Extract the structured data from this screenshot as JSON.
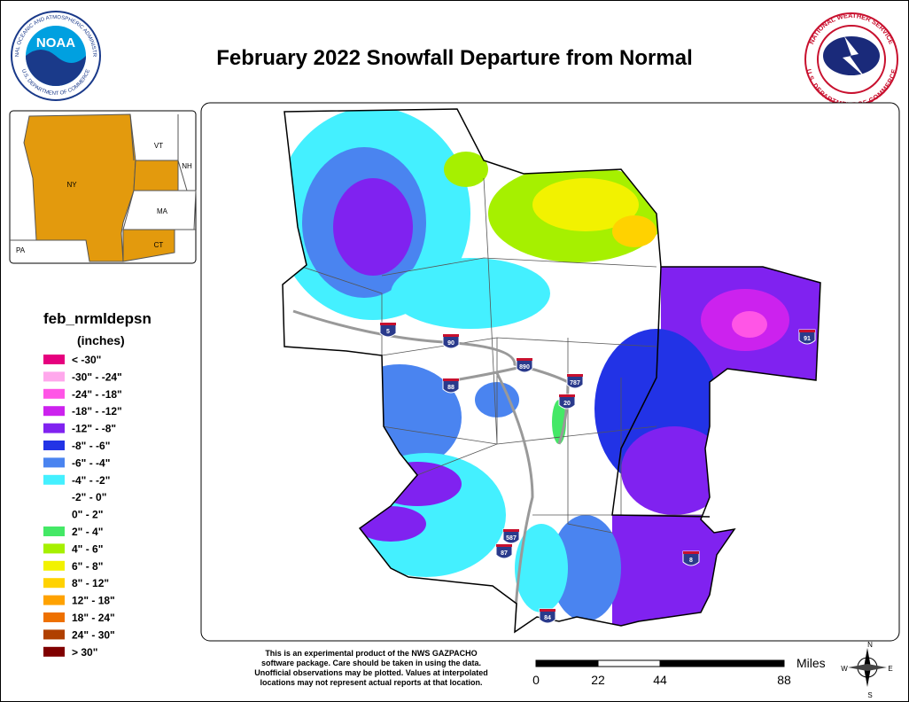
{
  "header": {
    "title": "February 2022 Snowfall Departure from Normal"
  },
  "logos": {
    "noaa": {
      "name": "NOAA",
      "ring_top": "NATIONAL OCEANIC AND ATMOSPHERIC ADMINISTRATION",
      "ring_bottom": "U.S. DEPARTMENT OF COMMERCE"
    },
    "nws": {
      "ring_top": "NATIONAL WEATHER SERVICE",
      "ring_bottom": "U.S. DEPARTMENT OF COMMERCE"
    }
  },
  "inset": {
    "labels": [
      "VT",
      "NH",
      "NY",
      "MA",
      "CT",
      "PA"
    ]
  },
  "legend": {
    "title": "feb_nrmldepsn",
    "units": "(inches)",
    "entries": [
      {
        "label": "< -30\"",
        "color": "#e6007e"
      },
      {
        "label": "-30\" - -24\"",
        "color": "#ffa8ec"
      },
      {
        "label": "-24\" - -18\"",
        "color": "#ff55e6"
      },
      {
        "label": "-18\" - -12\"",
        "color": "#cc22ee"
      },
      {
        "label": "-12\" - -8\"",
        "color": "#8022f0"
      },
      {
        "label": "-8\" - -6\"",
        "color": "#2233e6"
      },
      {
        "label": "-6\" - -4\"",
        "color": "#4a84f0"
      },
      {
        "label": "-4\" - -2\"",
        "color": "#44f0ff"
      },
      {
        "label": "-2\" - 0\"",
        "color": "#ffffff"
      },
      {
        "label": "0\" - 2\"",
        "color": "#ffffff"
      },
      {
        "label": "2\" - 4\"",
        "color": "#44e866"
      },
      {
        "label": "4\" - 6\"",
        "color": "#a6f000"
      },
      {
        "label": "6\" - 8\"",
        "color": "#f2f200"
      },
      {
        "label": "8\" - 12\"",
        "color": "#ffd200"
      },
      {
        "label": "12\" - 18\"",
        "color": "#ffa200"
      },
      {
        "label": "18\" - 24\"",
        "color": "#ee7000"
      },
      {
        "label": "24\" - 30\"",
        "color": "#b04000"
      },
      {
        "label": "> 30\"",
        "color": "#800000"
      }
    ]
  },
  "highways": [
    "5",
    "90",
    "890",
    "88",
    "787",
    "20",
    "87",
    "587",
    "84",
    "91",
    "8"
  ],
  "disclaimer": [
    "This is an experimental product of the NWS GAZPACHO",
    "software package. Care should be taken in using the data.",
    "Unofficial observations may be plotted. Values at interpolated",
    "locations may not represent actual reports at that location."
  ],
  "scale_bar": {
    "unit": "Miles",
    "ticks": [
      0,
      22,
      44,
      88
    ]
  },
  "compass": [
    "N",
    "E",
    "S",
    "W"
  ]
}
